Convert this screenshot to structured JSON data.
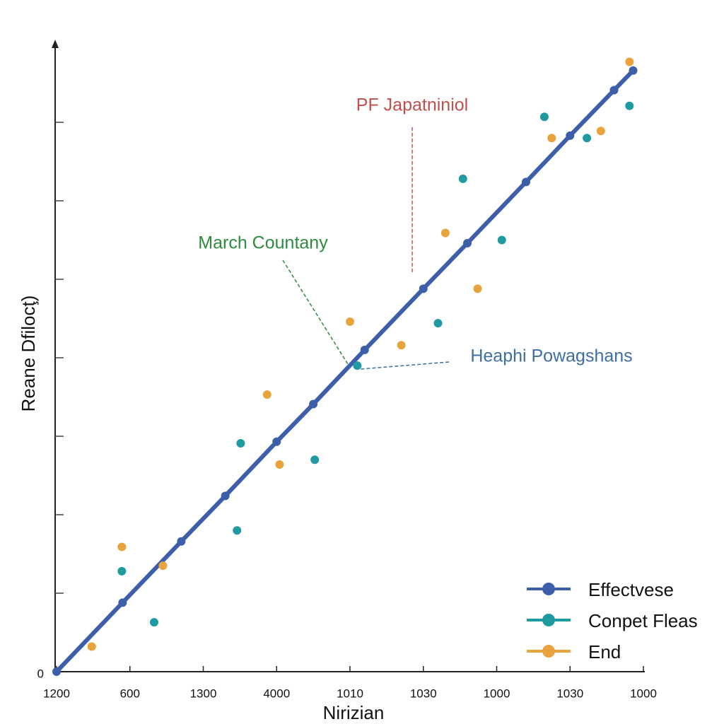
{
  "chart_data": {
    "type": "scatter",
    "x_label": "Nirizian",
    "y_label": "Reane Dfilocţ)",
    "xlim": [
      0,
      8
    ],
    "xticks": [
      {
        "value": 0,
        "label": "1200"
      },
      {
        "value": 1,
        "label": "600"
      },
      {
        "value": 2,
        "label": "1300"
      },
      {
        "value": 3,
        "label": "4000"
      },
      {
        "value": 4,
        "label": "1010"
      },
      {
        "value": 5,
        "label": "1030"
      },
      {
        "value": 6,
        "label": "1000"
      },
      {
        "value": 7,
        "label": "1030"
      },
      {
        "value": 8,
        "label": "1000"
      }
    ],
    "ylim": [
      0,
      8
    ],
    "yticks": [
      0
    ],
    "ytick_marks": [
      1,
      2,
      3,
      4,
      5,
      6,
      7
    ],
    "series": [
      {
        "name": "Effectvese",
        "color": "#3d5ea8",
        "line": true,
        "x": [
          0,
          0.9,
          1.7,
          2.3,
          3,
          3.5,
          4.2,
          5,
          5.6,
          6.4,
          7,
          7.6,
          7.86
        ],
        "values": [
          0,
          0.88,
          1.66,
          2.24,
          2.93,
          3.41,
          4.1,
          4.88,
          5.46,
          6.24,
          6.83,
          7.41,
          7.66
        ]
      },
      {
        "name": "Conpet Fleas",
        "color": "#1e9aa0",
        "line": false,
        "x": [
          1.33,
          5.54,
          7.81,
          6.65,
          5.2,
          2.46,
          3.52,
          6.07,
          0.89,
          2.51,
          7.23,
          4.1
        ],
        "values": [
          0.63,
          6.28,
          7.21,
          7.07,
          4.44,
          1.8,
          2.7,
          5.5,
          1.28,
          2.91,
          6.8,
          3.9
        ]
      },
      {
        "name": "End",
        "color": "#e8a33d",
        "line": false,
        "x": [
          0.89,
          2.87,
          4,
          5.74,
          7.42,
          7.81,
          3.04,
          4.7,
          0.48,
          1.45,
          5.3,
          6.75
        ],
        "values": [
          1.59,
          3.53,
          4.46,
          4.88,
          6.89,
          7.77,
          2.64,
          4.16,
          0.32,
          1.35,
          5.59,
          6.8
        ]
      }
    ],
    "annotations": [
      {
        "text": "PF Japatniniol",
        "color": "#c0504d"
      },
      {
        "text": "March Countany",
        "color": "#2e8b3e"
      },
      {
        "text": "Heaphi Powagshans",
        "color": "#3d6fa0"
      }
    ]
  }
}
